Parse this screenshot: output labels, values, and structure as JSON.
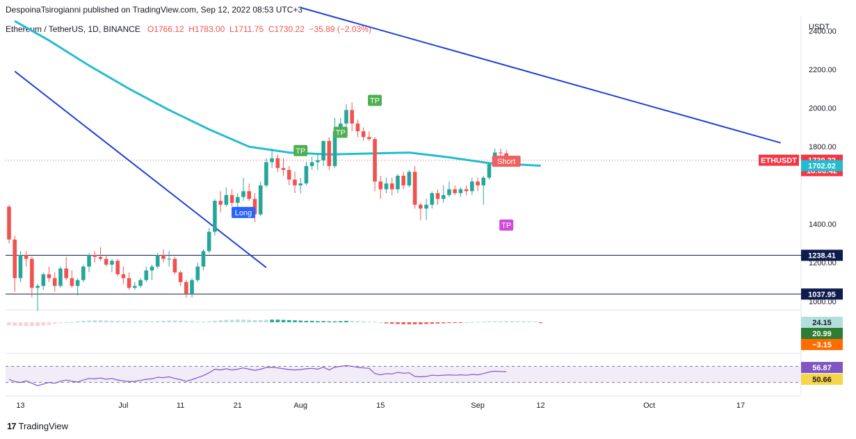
{
  "header": {
    "publisher": "DespoinaTsirogianni published on TradingView.com, Sep 12, 2022 08:53 UTC+3"
  },
  "legend": {
    "symbol": "Ethereum / TetherUS, 1D, BINANCE",
    "open": "O1766.12",
    "high": "H1783.00",
    "low": "L1711.75",
    "close": "C1730.22",
    "change": "−35.89 (−2.03%)"
  },
  "currency": "USDT",
  "footer": {
    "brand": "TradingView",
    "logo": "17"
  },
  "colors": {
    "up": "#26a69a",
    "down": "#ef5350",
    "ma": "#22bcd0",
    "trend": "#1e3fd6",
    "level": "#0e1b4d",
    "tp": "#4caf50",
    "tp_magenta": "#d24ad8",
    "long": "#2962ff",
    "short": "#f06060",
    "rsi": "#7e57c2",
    "rsi_ma": "#f5d54a"
  },
  "chart_data": [
    {
      "type": "candlestick",
      "title": "Ethereum / TetherUS, 1D, BINANCE",
      "y_ticks": [
        "1000.00",
        "1200.00",
        "1400.00",
        "1800.00",
        "2000.00",
        "2200.00",
        "2400.00"
      ],
      "ylim": [
        960,
        2480
      ],
      "x_ticks": [
        "13",
        "Jul",
        "11",
        "21",
        "Aug",
        "15",
        "Sep",
        "12",
        "Oct",
        "17"
      ],
      "price_labels": [
        {
          "text": "ETHUSDT",
          "value": 1730.22,
          "color": "#f23645"
        },
        {
          "text": "1730.22",
          "value": 1730.22,
          "color": "#f23645"
        },
        {
          "text": "18:06:42",
          "value": 1730.22,
          "color": "#f23645"
        },
        {
          "text": "1702.02",
          "value": 1702.02,
          "color": "#22bcd0"
        },
        {
          "text": "1238.41",
          "value": 1238.41,
          "color": "#0e1b4d"
        },
        {
          "text": "1037.95",
          "value": 1037.95,
          "color": "#0e1b4d"
        }
      ],
      "horizontal_levels": [
        1238.41,
        1037.95
      ],
      "signals": [
        {
          "text": "TP",
          "date": "Aug 1",
          "price": 1780,
          "color": "#4caf50"
        },
        {
          "text": "TP",
          "date": "Aug 8",
          "price": 1875,
          "color": "#4caf50"
        },
        {
          "text": "TP",
          "date": "Aug 14",
          "price": 2040,
          "color": "#4caf50"
        },
        {
          "text": "Long",
          "date": "Jul 22",
          "price": 1460,
          "color": "#2962ff"
        },
        {
          "text": "Short",
          "date": "Sep 6",
          "price": 1725,
          "color": "#f06060"
        },
        {
          "text": "TP",
          "date": "Sep 6",
          "price": 1395,
          "color": "#d24ad8"
        }
      ],
      "ma_series": [
        {
          "date": "Jun 12",
          "value": 2450
        },
        {
          "date": "Jun 18",
          "value": 2350
        },
        {
          "date": "Jun 25",
          "value": 2220
        },
        {
          "date": "Jul 2",
          "value": 2100
        },
        {
          "date": "Jul 9",
          "value": 1990
        },
        {
          "date": "Jul 16",
          "value": 1890
        },
        {
          "date": "Jul 23",
          "value": 1800
        },
        {
          "date": "Jul 30",
          "value": 1770
        },
        {
          "date": "Aug 6",
          "value": 1760
        },
        {
          "date": "Aug 13",
          "value": 1765
        },
        {
          "date": "Aug 20",
          "value": 1770
        },
        {
          "date": "Aug 27",
          "value": 1745
        },
        {
          "date": "Sep 3",
          "value": 1715
        },
        {
          "date": "Sep 12",
          "value": 1702
        }
      ],
      "trendlines": [
        {
          "from": {
            "date": "Jun 12",
            "price": 2190
          },
          "to": {
            "date": "Jul 26",
            "price": 1175
          }
        },
        {
          "from": {
            "date": "Aug 1",
            "price": 2520
          },
          "to": {
            "date": "Oct 24",
            "price": 1820
          }
        }
      ],
      "series": [
        {
          "name": "ETHUSDT",
          "values": [
            [
              1490,
              1500,
              1300,
              1320
            ],
            [
              1320,
              1340,
              1050,
              1120
            ],
            [
              1120,
              1260,
              1100,
              1240
            ],
            [
              1240,
              1260,
              1180,
              1220
            ],
            [
              1220,
              1230,
              1020,
              1070
            ],
            [
              1070,
              1090,
              950,
              1080
            ],
            [
              1080,
              1150,
              1060,
              1140
            ],
            [
              1140,
              1180,
              1100,
              1120
            ],
            [
              1120,
              1150,
              1050,
              1080
            ],
            [
              1080,
              1180,
              1070,
              1170
            ],
            [
              1170,
              1230,
              1110,
              1120
            ],
            [
              1120,
              1160,
              1070,
              1080
            ],
            [
              1080,
              1120,
              1030,
              1110
            ],
            [
              1110,
              1190,
              1100,
              1180
            ],
            [
              1180,
              1250,
              1150,
              1240
            ],
            [
              1240,
              1260,
              1200,
              1230
            ],
            [
              1230,
              1280,
              1210,
              1220
            ],
            [
              1220,
              1240,
              1180,
              1190
            ],
            [
              1190,
              1220,
              1150,
              1210
            ],
            [
              1210,
              1220,
              1130,
              1140
            ],
            [
              1140,
              1180,
              1090,
              1120
            ],
            [
              1120,
              1150,
              1060,
              1070
            ],
            [
              1070,
              1100,
              1060,
              1080
            ],
            [
              1080,
              1120,
              1070,
              1110
            ],
            [
              1110,
              1180,
              1100,
              1160
            ],
            [
              1160,
              1190,
              1110,
              1180
            ],
            [
              1180,
              1250,
              1170,
              1240
            ],
            [
              1240,
              1270,
              1200,
              1220
            ],
            [
              1220,
              1260,
              1180,
              1220
            ],
            [
              1220,
              1230,
              1140,
              1150
            ],
            [
              1150,
              1160,
              1080,
              1100
            ],
            [
              1100,
              1110,
              1020,
              1040
            ],
            [
              1040,
              1120,
              1020,
              1110
            ],
            [
              1110,
              1200,
              1100,
              1180
            ],
            [
              1180,
              1270,
              1160,
              1260
            ],
            [
              1260,
              1380,
              1250,
              1360
            ],
            [
              1360,
              1530,
              1340,
              1520
            ],
            [
              1520,
              1570,
              1460,
              1500
            ],
            [
              1500,
              1590,
              1490,
              1550
            ],
            [
              1550,
              1580,
              1490,
              1510
            ],
            [
              1510,
              1560,
              1480,
              1540
            ],
            [
              1540,
              1640,
              1520,
              1570
            ],
            [
              1570,
              1610,
              1520,
              1530
            ],
            [
              1530,
              1560,
              1410,
              1450
            ],
            [
              1450,
              1620,
              1440,
              1600
            ],
            [
              1600,
              1740,
              1590,
              1720
            ],
            [
              1720,
              1790,
              1690,
              1740
            ],
            [
              1740,
              1760,
              1670,
              1690
            ],
            [
              1690,
              1740,
              1650,
              1680
            ],
            [
              1680,
              1700,
              1600,
              1630
            ],
            [
              1630,
              1670,
              1560,
              1600
            ],
            [
              1600,
              1640,
              1560,
              1610
            ],
            [
              1610,
              1720,
              1600,
              1700
            ],
            [
              1700,
              1750,
              1680,
              1720
            ],
            [
              1720,
              1760,
              1680,
              1730
            ],
            [
              1730,
              1830,
              1700,
              1830
            ],
            [
              1830,
              1850,
              1680,
              1700
            ],
            [
              1700,
              1950,
              1690,
              1880
            ],
            [
              1880,
              1950,
              1860,
              1920
            ],
            [
              1920,
              2020,
              1890,
              1990
            ],
            [
              1990,
              2030,
              1880,
              1920
            ],
            [
              1920,
              1940,
              1850,
              1880
            ],
            [
              1880,
              1900,
              1830,
              1850
            ],
            [
              1850,
              1880,
              1830,
              1840
            ],
            [
              1840,
              1850,
              1570,
              1620
            ],
            [
              1620,
              1650,
              1530,
              1580
            ],
            [
              1580,
              1640,
              1560,
              1610
            ],
            [
              1610,
              1640,
              1550,
              1580
            ],
            [
              1580,
              1660,
              1560,
              1650
            ],
            [
              1650,
              1670,
              1580,
              1600
            ],
            [
              1600,
              1680,
              1590,
              1670
            ],
            [
              1670,
              1700,
              1480,
              1500
            ],
            [
              1500,
              1510,
              1420,
              1480
            ],
            [
              1480,
              1530,
              1420,
              1500
            ],
            [
              1500,
              1570,
              1480,
              1560
            ],
            [
              1560,
              1580,
              1500,
              1530
            ],
            [
              1530,
              1600,
              1510,
              1550
            ],
            [
              1550,
              1620,
              1540,
              1580
            ],
            [
              1580,
              1600,
              1550,
              1560
            ],
            [
              1560,
              1590,
              1540,
              1580
            ],
            [
              1580,
              1600,
              1550,
              1570
            ],
            [
              1570,
              1640,
              1550,
              1620
            ],
            [
              1620,
              1640,
              1570,
              1600
            ],
            [
              1600,
              1650,
              1500,
              1640
            ],
            [
              1640,
              1720,
              1630,
              1710
            ],
            [
              1710,
              1790,
              1700,
              1770
            ],
            [
              1770,
              1790,
              1730,
              1766
            ],
            [
              1766.12,
              1783,
              1711.75,
              1730.22
            ]
          ]
        }
      ]
    },
    {
      "type": "line",
      "title": "MACD",
      "y_ticks": [],
      "price_labels": [
        {
          "text": "24.15",
          "value": 24.15,
          "color": "#b2dfdb"
        },
        {
          "text": "20.99",
          "value": 20.99,
          "color": "#2e7d32"
        },
        {
          "text": "−3.15",
          "value": -3.15,
          "color": "#ff6d00"
        }
      ],
      "histogram": [
        -12,
        -14,
        -15,
        -16,
        -16,
        -15,
        -13,
        -10,
        -6,
        -3,
        0,
        2,
        4,
        6,
        7,
        8,
        8,
        7,
        6,
        6,
        5,
        5,
        5,
        4,
        4,
        4,
        5,
        6,
        7,
        7,
        6,
        5,
        4,
        3,
        3,
        4,
        6,
        8,
        10,
        10,
        11,
        11,
        10,
        9,
        9,
        10,
        11,
        11,
        10,
        9,
        8,
        7,
        6,
        6,
        5,
        5,
        4,
        4,
        5,
        6,
        6,
        5,
        4,
        3,
        2,
        0,
        -4,
        -6,
        -7,
        -8,
        -8,
        -8,
        -8,
        -7,
        -6,
        -5,
        -4,
        -3,
        -2,
        -1,
        0,
        1,
        2,
        3,
        4,
        4,
        4,
        5,
        5,
        4,
        4,
        4,
        3,
        -3
      ]
    },
    {
      "type": "line",
      "title": "RSI",
      "price_labels": [
        {
          "text": "56.87",
          "value": 56.87,
          "color": "#7e57c2"
        },
        {
          "text": "50.66",
          "value": 50.66,
          "color": "#f5d54a"
        }
      ],
      "rsi": [
        38,
        32,
        30,
        34,
        28,
        22,
        26,
        30,
        28,
        33,
        36,
        33,
        31,
        36,
        40,
        39,
        41,
        38,
        40,
        36,
        34,
        32,
        33,
        35,
        38,
        39,
        43,
        42,
        44,
        40,
        37,
        33,
        37,
        42,
        47,
        54,
        63,
        61,
        64,
        61,
        63,
        66,
        63,
        60,
        63,
        67,
        68,
        66,
        64,
        62,
        61,
        62,
        64,
        65,
        63,
        68,
        61,
        68,
        70,
        72,
        70,
        68,
        66,
        65,
        52,
        49,
        52,
        51,
        55,
        53,
        54,
        45,
        44,
        45,
        48,
        47,
        48,
        49,
        48,
        49,
        48,
        50,
        49,
        52,
        56,
        58,
        57,
        56.87
      ]
    }
  ]
}
